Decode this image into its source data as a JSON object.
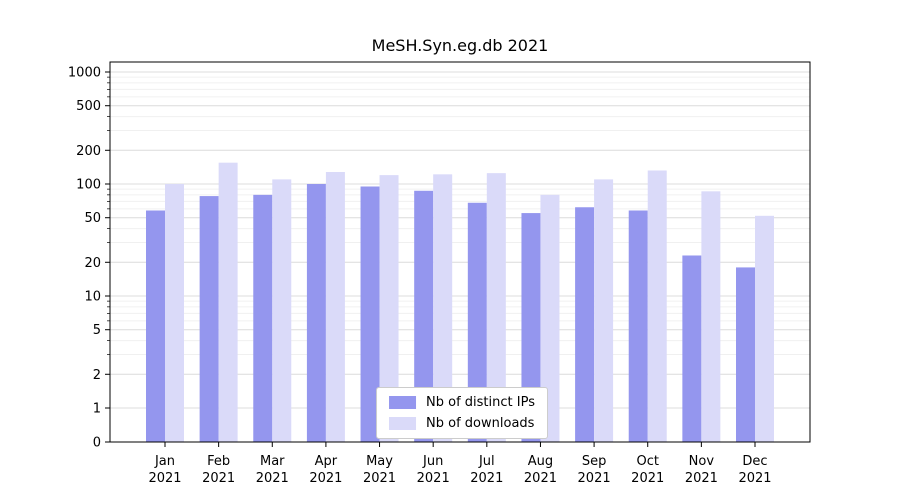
{
  "title": "MeSH.Syn.eg.db 2021",
  "chart_data": {
    "type": "bar",
    "title": "MeSH.Syn.eg.db 2021",
    "categories": [
      "Jan 2021",
      "Feb 2021",
      "Mar 2021",
      "Apr 2021",
      "May 2021",
      "Jun 2021",
      "Jul 2021",
      "Aug 2021",
      "Sep 2021",
      "Oct 2021",
      "Nov 2021",
      "Dec 2021"
    ],
    "series": [
      {
        "name": "Nb of distinct IPs",
        "color": "#9496ee",
        "values": [
          58,
          78,
          80,
          100,
          95,
          87,
          68,
          55,
          62,
          58,
          23,
          18
        ]
      },
      {
        "name": "Nb of downloads",
        "color": "#dadaf9",
        "values": [
          100,
          155,
          110,
          128,
          120,
          122,
          125,
          80,
          110,
          132,
          86,
          52
        ]
      }
    ],
    "yscale": "symlog",
    "yticks": [
      0,
      1,
      2,
      5,
      10,
      20,
      50,
      100,
      200,
      500,
      1000
    ],
    "ylim": [
      0,
      1000
    ],
    "grid": true,
    "legend": {
      "position": "lower center",
      "labels": [
        "Nb of distinct IPs",
        "Nb of downloads"
      ]
    }
  }
}
